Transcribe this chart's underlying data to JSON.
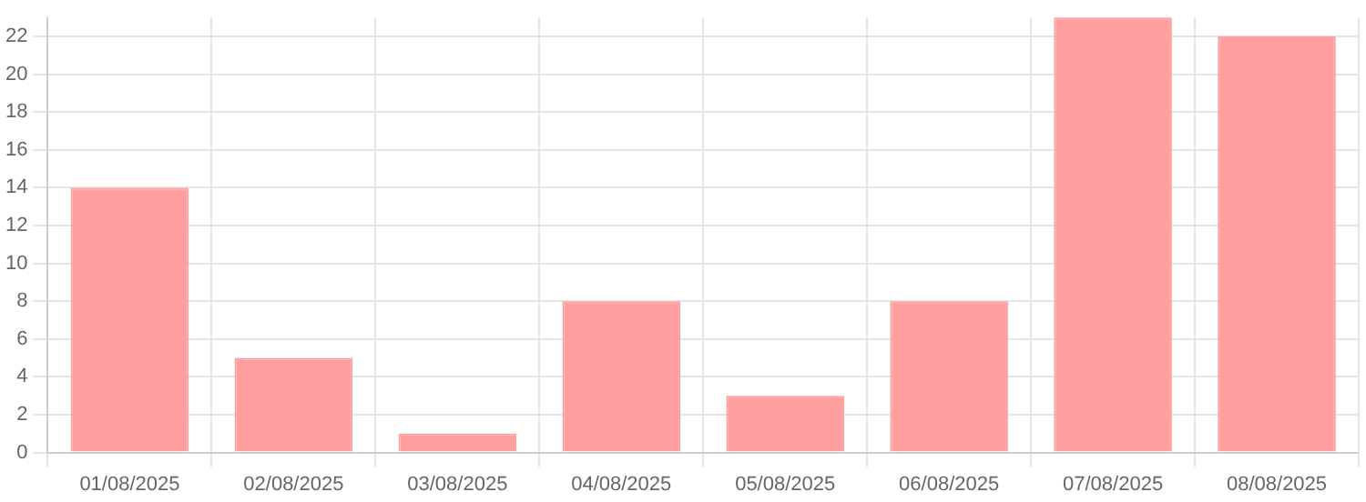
{
  "chart_data": {
    "type": "bar",
    "categories": [
      "01/08/2025",
      "02/08/2025",
      "03/08/2025",
      "04/08/2025",
      "05/08/2025",
      "06/08/2025",
      "07/08/2025",
      "08/08/2025"
    ],
    "values": [
      14,
      5,
      1,
      8,
      3,
      8,
      23,
      22
    ],
    "color": "#ff9f9f",
    "ylim": [
      0,
      23
    ],
    "yticks": [
      0,
      2,
      4,
      6,
      8,
      10,
      12,
      14,
      16,
      18,
      20,
      22
    ],
    "grid": true,
    "legend": false
  }
}
